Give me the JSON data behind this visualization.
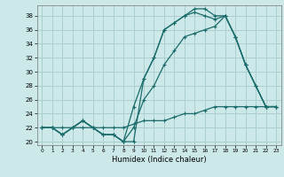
{
  "xlabel": "Humidex (Indice chaleur)",
  "xlim": [
    -0.5,
    23.5
  ],
  "ylim": [
    19.5,
    39.5
  ],
  "yticks": [
    20,
    22,
    24,
    26,
    28,
    30,
    32,
    34,
    36,
    38
  ],
  "xticks": [
    0,
    1,
    2,
    3,
    4,
    5,
    6,
    7,
    8,
    9,
    10,
    11,
    12,
    13,
    14,
    15,
    16,
    17,
    18,
    19,
    20,
    21,
    22,
    23
  ],
  "background_color": "#cce8e8",
  "grid_color": "#aacece",
  "line_color": "#1a6b6b",
  "series": [
    {
      "x": [
        0,
        1,
        2,
        3,
        4,
        5,
        6,
        7,
        8,
        9,
        10,
        11,
        12,
        13,
        14,
        15,
        16,
        17,
        18,
        19,
        20,
        21,
        22,
        23
      ],
      "y": [
        22,
        22,
        22,
        22,
        22,
        22,
        22,
        22,
        22,
        22.5,
        23,
        23,
        23,
        23.5,
        24,
        24,
        24.5,
        25,
        25,
        25,
        25,
        25,
        25,
        25
      ]
    },
    {
      "x": [
        0,
        1,
        2,
        3,
        4,
        5,
        6,
        7,
        8,
        9,
        10,
        11,
        12,
        13,
        14,
        15,
        16,
        17,
        18,
        19,
        20,
        21,
        22,
        23
      ],
      "y": [
        22,
        22,
        21,
        22,
        23,
        22,
        21,
        21,
        20,
        20,
        29,
        32,
        36,
        37,
        38,
        39,
        39,
        38,
        38,
        35,
        31,
        28,
        25,
        25
      ]
    },
    {
      "x": [
        0,
        1,
        2,
        3,
        4,
        5,
        6,
        7,
        8,
        9,
        10,
        11,
        12,
        13,
        14,
        15,
        16,
        17,
        18,
        19,
        20,
        21,
        22,
        23
      ],
      "y": [
        22,
        22,
        21,
        22,
        23,
        22,
        21,
        21,
        20,
        25,
        29,
        32,
        36,
        37,
        38,
        38.5,
        38,
        37.5,
        38,
        35,
        31,
        28,
        25,
        25
      ]
    },
    {
      "x": [
        0,
        1,
        2,
        3,
        4,
        5,
        6,
        7,
        8,
        9,
        10,
        11,
        12,
        13,
        14,
        15,
        16,
        17,
        18,
        19,
        20,
        21,
        22,
        23
      ],
      "y": [
        22,
        22,
        21,
        22,
        23,
        22,
        21,
        21,
        20,
        22,
        26,
        28,
        31,
        33,
        35,
        35.5,
        36,
        36.5,
        38,
        35,
        31,
        28,
        25,
        25
      ]
    }
  ]
}
